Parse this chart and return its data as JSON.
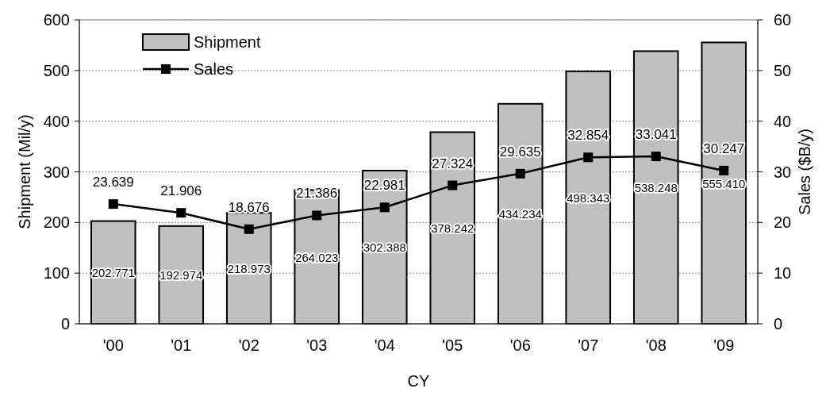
{
  "chart_data": {
    "type": "bar",
    "xlabel": "CY",
    "ylabel": "Shipment (Mil/y)",
    "y2label": "Sales ($B/y)",
    "categories": [
      "'00",
      "'01",
      "'02",
      "'03",
      "'04",
      "'05",
      "'06",
      "'07",
      "'08",
      "'09"
    ],
    "series": [
      {
        "name": "Shipment",
        "color": "#c0c0c0",
        "values": [
          202.771,
          192.974,
          218.973,
          264.023,
          302.388,
          378.242,
          434.234,
          498.343,
          538.248,
          555.41
        ],
        "value_labels": [
          "202.771",
          "192.974",
          "218.973",
          "264.023",
          "302.388",
          "378.242",
          "434.234",
          "498.343",
          "538.248",
          "555.410"
        ]
      },
      {
        "name": "Sales",
        "type": "line",
        "axis": "y2",
        "color": "#000000",
        "values": [
          23.639,
          21.906,
          18.676,
          21.386,
          22.981,
          27.324,
          29.635,
          32.854,
          33.041,
          30.247
        ],
        "value_labels": [
          "23.639",
          "21.906",
          "18.676",
          "21.386",
          "22.981",
          "27.324",
          "29.635",
          "32.854",
          "33.041",
          "30.247"
        ]
      }
    ],
    "ylim": [
      0,
      600
    ],
    "yticks": [
      0,
      100,
      200,
      300,
      400,
      500,
      600
    ],
    "y2lim": [
      0,
      60
    ],
    "y2ticks": [
      0,
      10,
      20,
      30,
      40,
      50,
      60
    ],
    "grid": "y",
    "legend": "top left",
    "marker": "square",
    "line_style": "solid"
  }
}
